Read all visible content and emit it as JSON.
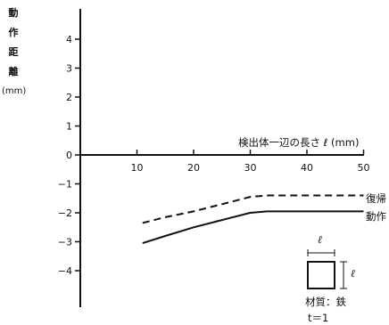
{
  "chart_data": {
    "type": "line",
    "title": "",
    "ylabel_chars": [
      "動",
      "作",
      "距",
      "離"
    ],
    "ylabel_unit": "(mm)",
    "xlabel": "検出体一辺の長さ ℓ (mm)",
    "xlim": [
      0,
      50
    ],
    "ylim": [
      -5,
      5
    ],
    "x_ticks": [
      10,
      20,
      30,
      40,
      50
    ],
    "y_ticks": [
      4,
      3,
      2,
      1,
      0,
      -1,
      -2,
      -3,
      -4
    ],
    "y_tick_labels": [
      "4",
      "3",
      "2",
      "1",
      "0",
      "−1",
      "−2",
      "−3",
      "−4"
    ],
    "series": [
      {
        "name": "復帰",
        "style": "dashed",
        "x": [
          11,
          15,
          20,
          25,
          30,
          33,
          40,
          45,
          50
        ],
        "y": [
          -2.35,
          -2.15,
          -1.95,
          -1.7,
          -1.45,
          -1.4,
          -1.4,
          -1.4,
          -1.4
        ]
      },
      {
        "name": "動作",
        "style": "solid",
        "x": [
          11,
          15,
          20,
          25,
          30,
          33,
          40,
          45,
          50
        ],
        "y": [
          -3.05,
          -2.8,
          -2.5,
          -2.25,
          -2.0,
          -1.95,
          -1.95,
          -1.95,
          -1.95
        ]
      }
    ],
    "inset": {
      "dim_top": "ℓ",
      "dim_right": "ℓ",
      "material_label": "材質：鉄",
      "thickness_label": "t＝1"
    },
    "line_color": "#111111"
  }
}
